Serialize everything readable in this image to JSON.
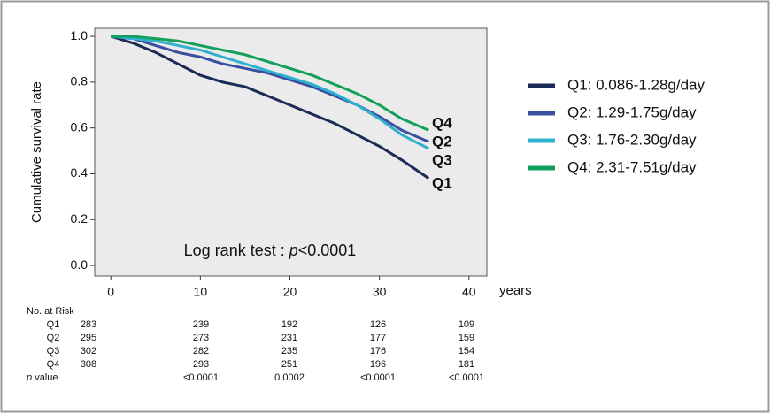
{
  "chart_data": {
    "type": "line",
    "y_label": "Cumulative survival rate",
    "x_label": "years",
    "x": [
      0,
      2.5,
      5,
      7.5,
      10,
      12.5,
      15,
      17.5,
      20,
      22.5,
      25,
      27.5,
      30,
      32.5,
      35.5
    ],
    "series": [
      {
        "name": "Q1: 0.086-1.28g/day",
        "color": "#1c2a56",
        "values": [
          1.0,
          0.97,
          0.93,
          0.88,
          0.83,
          0.8,
          0.78,
          0.74,
          0.7,
          0.66,
          0.62,
          0.57,
          0.52,
          0.46,
          0.38
        ]
      },
      {
        "name": "Q2: 1.29-1.75g/day",
        "color": "#3b4fa0",
        "values": [
          1.0,
          0.99,
          0.96,
          0.93,
          0.91,
          0.88,
          0.86,
          0.84,
          0.81,
          0.78,
          0.74,
          0.7,
          0.65,
          0.59,
          0.54
        ]
      },
      {
        "name": "Q3: 1.76-2.30g/day",
        "color": "#2fb0cc",
        "values": [
          1.0,
          0.99,
          0.98,
          0.96,
          0.94,
          0.91,
          0.88,
          0.85,
          0.82,
          0.79,
          0.75,
          0.7,
          0.64,
          0.57,
          0.51
        ]
      },
      {
        "name": "Q4: 2.31-7.51g/day",
        "color": "#13a05a",
        "values": [
          1.0,
          1.0,
          0.99,
          0.98,
          0.96,
          0.94,
          0.92,
          0.89,
          0.86,
          0.83,
          0.79,
          0.75,
          0.7,
          0.64,
          0.59
        ]
      }
    ],
    "end_labels": [
      "Q4",
      "Q2",
      "Q3",
      "Q1"
    ],
    "annotation": {
      "prefix": "Log rank test : ",
      "italic": "p",
      "suffix": "<0.0001"
    },
    "xlim": [
      -1.8,
      42
    ],
    "ylim": [
      -0.046,
      1.035
    ],
    "xticks": [
      0,
      10,
      20,
      30,
      40
    ],
    "yticks": [
      {
        "value": 0,
        "label": "0.0"
      },
      0.2,
      0.4,
      0.6,
      0.8,
      {
        "value": 1,
        "label": "1.0"
      }
    ],
    "background": "#ebebeb"
  },
  "risk_table": {
    "title": "No. at Risk",
    "rows": [
      {
        "label": "Q1",
        "values": [
          283,
          239,
          192,
          126,
          109
        ]
      },
      {
        "label": "Q2",
        "values": [
          295,
          273,
          231,
          177,
          159
        ]
      },
      {
        "label": "Q3",
        "values": [
          302,
          282,
          235,
          176,
          154
        ]
      },
      {
        "label": "Q4",
        "values": [
          308,
          293,
          251,
          196,
          181
        ]
      }
    ],
    "p_label": {
      "italic": "p",
      "text": "value"
    },
    "p_values": [
      "<0.0001",
      "0.0002",
      "<0.0001",
      "<0.0001"
    ]
  }
}
